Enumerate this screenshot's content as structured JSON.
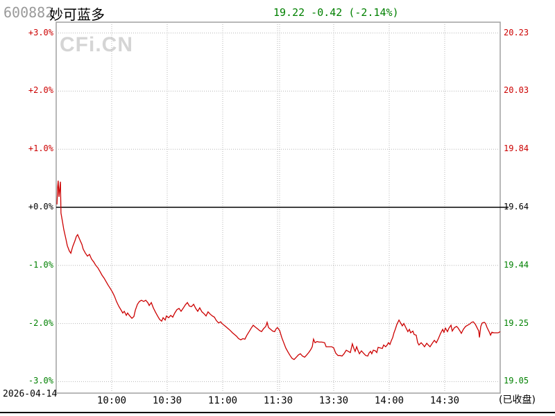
{
  "header": {
    "stock_code": "600882",
    "stock_name": "妙可蓝多",
    "quote_text": "19.22 -0.42 (-2.14%)",
    "price": "19.22",
    "change": "-0.42",
    "change_pct": "-2.14%"
  },
  "watermark": {
    "text": "CFi.CN"
  },
  "footer": {
    "date": "2026-04-14",
    "status": "(已收盘)"
  },
  "colors": {
    "up": "#cc0000",
    "down": "#008000",
    "flat": "#000000",
    "line": "#cc0000",
    "grid": "#b5b5b5",
    "border": "#a0a0a0",
    "watermark": "#d5d5d5",
    "code_gray": "#9a9a9a",
    "quote_green": "#008000"
  },
  "chart_data": {
    "type": "line",
    "prev_close": 19.64,
    "last_price": 19.22,
    "change_pct": -2.14,
    "ylim_pct": [
      -3.0,
      3.0
    ],
    "grid": "dotted",
    "y_axis_left": {
      "labels": [
        {
          "text": "+3.0%",
          "tone": "up"
        },
        {
          "text": "+2.0%",
          "tone": "up"
        },
        {
          "text": "+1.0%",
          "tone": "up"
        },
        {
          "text": "+0.0%",
          "tone": "flat"
        },
        {
          "text": "-1.0%",
          "tone": "down"
        },
        {
          "text": "-2.0%",
          "tone": "down"
        },
        {
          "text": "-3.0%",
          "tone": "down"
        }
      ]
    },
    "y_axis_right": {
      "labels": [
        {
          "text": "20.23",
          "tone": "up"
        },
        {
          "text": "20.03",
          "tone": "up"
        },
        {
          "text": "19.84",
          "tone": "up"
        },
        {
          "text": "19.64",
          "tone": "flat"
        },
        {
          "text": "19.44",
          "tone": "down"
        },
        {
          "text": "19.25",
          "tone": "down"
        },
        {
          "text": "19.05",
          "tone": "down"
        }
      ]
    },
    "x_axis": {
      "ticks": [
        "10:00",
        "10:30",
        "11:00",
        "11:30",
        "13:30",
        "14:00",
        "14:30"
      ]
    },
    "series": [
      {
        "name": "price-pct-vs-prev-close",
        "x_unit": "trading-minutes-since-open",
        "points": [
          [
            0.4,
            0.05
          ],
          [
            0.8,
            0.35
          ],
          [
            1.1,
            0.46
          ],
          [
            1.5,
            0.18
          ],
          [
            1.9,
            0.32
          ],
          [
            2.3,
            0.44
          ],
          [
            2.6,
            -0.1
          ],
          [
            3.4,
            -0.25
          ],
          [
            4.1,
            -0.38
          ],
          [
            5.3,
            -0.55
          ],
          [
            6.0,
            -0.66
          ],
          [
            7.1,
            -0.75
          ],
          [
            7.9,
            -0.79
          ],
          [
            9.0,
            -0.67
          ],
          [
            10.1,
            -0.58
          ],
          [
            10.9,
            -0.5
          ],
          [
            11.6,
            -0.47
          ],
          [
            12.8,
            -0.56
          ],
          [
            13.9,
            -0.64
          ],
          [
            14.6,
            -0.72
          ],
          [
            15.8,
            -0.79
          ],
          [
            16.9,
            -0.84
          ],
          [
            18.0,
            -0.81
          ],
          [
            19.1,
            -0.89
          ],
          [
            20.3,
            -0.94
          ],
          [
            21.4,
            -1.0
          ],
          [
            22.5,
            -1.04
          ],
          [
            23.6,
            -1.1
          ],
          [
            24.8,
            -1.17
          ],
          [
            25.9,
            -1.22
          ],
          [
            27.0,
            -1.28
          ],
          [
            28.1,
            -1.34
          ],
          [
            29.3,
            -1.4
          ],
          [
            30.4,
            -1.46
          ],
          [
            31.5,
            -1.53
          ],
          [
            32.6,
            -1.62
          ],
          [
            33.8,
            -1.7
          ],
          [
            34.9,
            -1.76
          ],
          [
            36.0,
            -1.82
          ],
          [
            36.8,
            -1.79
          ],
          [
            37.9,
            -1.86
          ],
          [
            38.6,
            -1.82
          ],
          [
            39.8,
            -1.87
          ],
          [
            40.9,
            -1.91
          ],
          [
            42.0,
            -1.88
          ],
          [
            42.8,
            -1.77
          ],
          [
            43.9,
            -1.67
          ],
          [
            45.0,
            -1.62
          ],
          [
            46.1,
            -1.6
          ],
          [
            47.3,
            -1.62
          ],
          [
            48.4,
            -1.6
          ],
          [
            49.5,
            -1.64
          ],
          [
            50.3,
            -1.69
          ],
          [
            51.4,
            -1.64
          ],
          [
            52.5,
            -1.73
          ],
          [
            53.6,
            -1.8
          ],
          [
            54.8,
            -1.87
          ],
          [
            55.9,
            -1.93
          ],
          [
            57.0,
            -1.96
          ],
          [
            57.8,
            -1.9
          ],
          [
            58.9,
            -1.94
          ],
          [
            59.6,
            -1.87
          ],
          [
            60.8,
            -1.9
          ],
          [
            61.9,
            -1.86
          ],
          [
            63.0,
            -1.89
          ],
          [
            64.1,
            -1.82
          ],
          [
            65.3,
            -1.76
          ],
          [
            66.4,
            -1.74
          ],
          [
            67.5,
            -1.79
          ],
          [
            68.6,
            -1.74
          ],
          [
            69.8,
            -1.68
          ],
          [
            70.9,
            -1.64
          ],
          [
            72.0,
            -1.7
          ],
          [
            73.1,
            -1.71
          ],
          [
            74.3,
            -1.67
          ],
          [
            75.4,
            -1.74
          ],
          [
            76.5,
            -1.79
          ],
          [
            77.6,
            -1.73
          ],
          [
            78.8,
            -1.8
          ],
          [
            79.9,
            -1.83
          ],
          [
            81.0,
            -1.87
          ],
          [
            82.1,
            -1.8
          ],
          [
            83.3,
            -1.84
          ],
          [
            84.4,
            -1.87
          ],
          [
            85.5,
            -1.89
          ],
          [
            86.6,
            -1.95
          ],
          [
            87.8,
            -1.99
          ],
          [
            88.9,
            -1.97
          ],
          [
            89.6,
            -2.0
          ],
          [
            90.8,
            -2.03
          ],
          [
            91.9,
            -2.06
          ],
          [
            93.0,
            -2.09
          ],
          [
            94.1,
            -2.12
          ],
          [
            95.3,
            -2.16
          ],
          [
            96.4,
            -2.19
          ],
          [
            97.5,
            -2.22
          ],
          [
            98.6,
            -2.26
          ],
          [
            99.8,
            -2.28
          ],
          [
            100.9,
            -2.26
          ],
          [
            102.0,
            -2.27
          ],
          [
            103.1,
            -2.2
          ],
          [
            104.3,
            -2.14
          ],
          [
            105.4,
            -2.08
          ],
          [
            106.5,
            -2.03
          ],
          [
            107.6,
            -2.06
          ],
          [
            108.8,
            -2.09
          ],
          [
            109.9,
            -2.12
          ],
          [
            111.0,
            -2.14
          ],
          [
            112.1,
            -2.09
          ],
          [
            113.3,
            -2.05
          ],
          [
            114.0,
            -1.98
          ],
          [
            114.8,
            -2.07
          ],
          [
            115.9,
            -2.1
          ],
          [
            117.0,
            -2.13
          ],
          [
            118.1,
            -2.14
          ],
          [
            118.9,
            -2.09
          ],
          [
            119.6,
            -2.07
          ],
          [
            120.8,
            -2.12
          ],
          [
            121.9,
            -2.24
          ],
          [
            123.0,
            -2.33
          ],
          [
            124.1,
            -2.42
          ],
          [
            125.3,
            -2.49
          ],
          [
            126.4,
            -2.55
          ],
          [
            127.5,
            -2.6
          ],
          [
            128.6,
            -2.62
          ],
          [
            129.8,
            -2.58
          ],
          [
            130.9,
            -2.54
          ],
          [
            132.0,
            -2.52
          ],
          [
            133.1,
            -2.56
          ],
          [
            134.3,
            -2.58
          ],
          [
            135.4,
            -2.54
          ],
          [
            136.5,
            -2.5
          ],
          [
            137.6,
            -2.45
          ],
          [
            138.4,
            -2.4
          ],
          [
            139.1,
            -2.27
          ],
          [
            139.9,
            -2.33
          ],
          [
            141.0,
            -2.31
          ],
          [
            142.1,
            -2.32
          ],
          [
            143.6,
            -2.32
          ],
          [
            145.1,
            -2.33
          ],
          [
            145.9,
            -2.4
          ],
          [
            147.4,
            -2.4
          ],
          [
            148.9,
            -2.4
          ],
          [
            150.0,
            -2.42
          ],
          [
            151.1,
            -2.51
          ],
          [
            152.3,
            -2.55
          ],
          [
            153.4,
            -2.55
          ],
          [
            154.5,
            -2.56
          ],
          [
            155.6,
            -2.52
          ],
          [
            156.8,
            -2.46
          ],
          [
            157.9,
            -2.48
          ],
          [
            159.0,
            -2.5
          ],
          [
            160.1,
            -2.35
          ],
          [
            160.9,
            -2.43
          ],
          [
            161.6,
            -2.48
          ],
          [
            162.4,
            -2.4
          ],
          [
            163.1,
            -2.46
          ],
          [
            163.9,
            -2.52
          ],
          [
            165.0,
            -2.47
          ],
          [
            166.1,
            -2.51
          ],
          [
            167.3,
            -2.55
          ],
          [
            168.4,
            -2.56
          ],
          [
            169.1,
            -2.51
          ],
          [
            169.9,
            -2.48
          ],
          [
            170.6,
            -2.52
          ],
          [
            171.4,
            -2.46
          ],
          [
            172.5,
            -2.47
          ],
          [
            173.3,
            -2.5
          ],
          [
            174.0,
            -2.41
          ],
          [
            175.1,
            -2.42
          ],
          [
            176.3,
            -2.43
          ],
          [
            177.0,
            -2.37
          ],
          [
            178.1,
            -2.4
          ],
          [
            178.9,
            -2.37
          ],
          [
            179.6,
            -2.33
          ],
          [
            180.4,
            -2.36
          ],
          [
            181.1,
            -2.3
          ],
          [
            181.9,
            -2.24
          ],
          [
            182.6,
            -2.16
          ],
          [
            183.4,
            -2.09
          ],
          [
            184.1,
            -2.02
          ],
          [
            185.3,
            -1.94
          ],
          [
            186.0,
            -1.98
          ],
          [
            187.1,
            -2.04
          ],
          [
            187.9,
            -2.0
          ],
          [
            189.0,
            -2.07
          ],
          [
            190.1,
            -2.14
          ],
          [
            190.9,
            -2.1
          ],
          [
            191.6,
            -2.16
          ],
          [
            192.8,
            -2.13
          ],
          [
            193.5,
            -2.19
          ],
          [
            194.6,
            -2.2
          ],
          [
            195.4,
            -2.33
          ],
          [
            196.1,
            -2.37
          ],
          [
            197.3,
            -2.33
          ],
          [
            198.4,
            -2.37
          ],
          [
            199.1,
            -2.4
          ],
          [
            200.3,
            -2.34
          ],
          [
            201.4,
            -2.38
          ],
          [
            202.1,
            -2.4
          ],
          [
            203.3,
            -2.34
          ],
          [
            204.4,
            -2.29
          ],
          [
            205.5,
            -2.33
          ],
          [
            206.6,
            -2.26
          ],
          [
            207.8,
            -2.17
          ],
          [
            208.9,
            -2.1
          ],
          [
            209.6,
            -2.15
          ],
          [
            210.4,
            -2.08
          ],
          [
            211.5,
            -2.14
          ],
          [
            212.3,
            -2.08
          ],
          [
            213.4,
            -2.03
          ],
          [
            214.1,
            -2.13
          ],
          [
            215.3,
            -2.07
          ],
          [
            216.4,
            -2.05
          ],
          [
            217.1,
            -2.07
          ],
          [
            218.3,
            -2.13
          ],
          [
            219.0,
            -2.17
          ],
          [
            220.1,
            -2.1
          ],
          [
            221.3,
            -2.05
          ],
          [
            222.4,
            -2.03
          ],
          [
            223.5,
            -2.01
          ],
          [
            224.6,
            -1.98
          ],
          [
            225.4,
            -1.97
          ],
          [
            226.5,
            -2.01
          ],
          [
            227.3,
            -2.06
          ],
          [
            228.4,
            -2.13
          ],
          [
            228.8,
            -2.24
          ],
          [
            229.5,
            -2.05
          ],
          [
            230.3,
            -1.99
          ],
          [
            231.4,
            -1.98
          ],
          [
            232.1,
            -2.0
          ],
          [
            232.9,
            -2.07
          ],
          [
            234.0,
            -2.14
          ],
          [
            234.8,
            -2.2
          ],
          [
            235.5,
            -2.15
          ],
          [
            236.6,
            -2.16
          ],
          [
            237.8,
            -2.16
          ],
          [
            238.9,
            -2.16
          ],
          [
            240.0,
            -2.14
          ]
        ]
      }
    ]
  }
}
